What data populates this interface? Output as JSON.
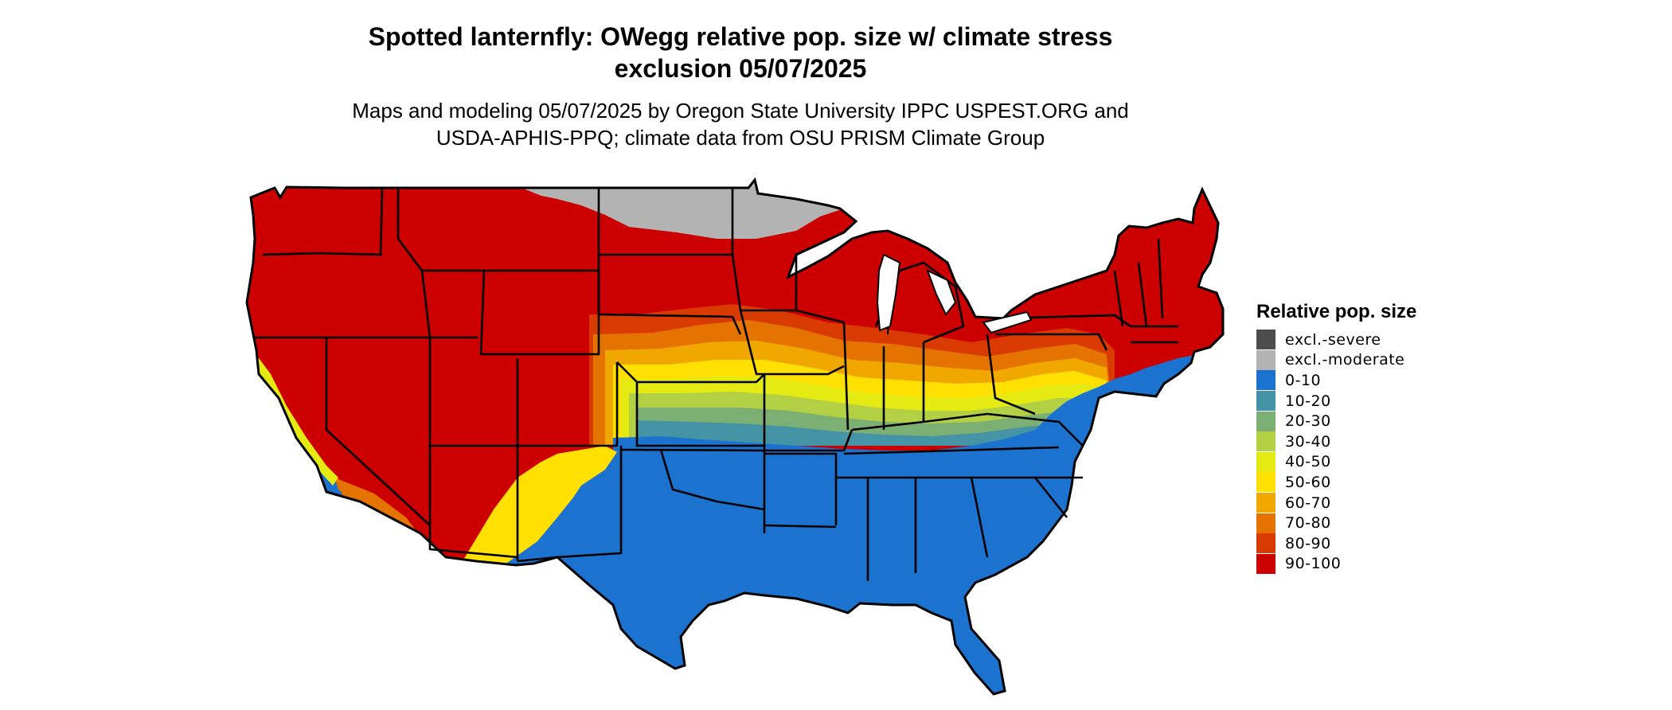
{
  "header": {
    "title_line1": "Spotted lanternfly: OWegg relative pop. size w/ climate stress",
    "title_line2": "exclusion 05/07/2025",
    "subtitle_line1": "Maps and modeling 05/07/2025 by Oregon State University IPPC USPEST.ORG and",
    "subtitle_line2": "USDA-APHIS-PPQ; climate data from OSU PRISM Climate Group"
  },
  "legend": {
    "title": "Relative pop. size",
    "items": [
      {
        "label": "excl.-severe",
        "color": "#4d4d4d"
      },
      {
        "label": "excl.-moderate",
        "color": "#b3b3b3"
      },
      {
        "label": "0-10",
        "color": "#1b73cf"
      },
      {
        "label": "10-20",
        "color": "#4494a6"
      },
      {
        "label": "20-30",
        "color": "#7caf73"
      },
      {
        "label": "30-40",
        "color": "#b3d044"
      },
      {
        "label": "40-50",
        "color": "#e4ea12"
      },
      {
        "label": "50-60",
        "color": "#ffe000"
      },
      {
        "label": "60-70",
        "color": "#f0a800"
      },
      {
        "label": "70-80",
        "color": "#e57300"
      },
      {
        "label": "80-90",
        "color": "#d93a00"
      },
      {
        "label": "90-100",
        "color": "#cc0000"
      }
    ]
  },
  "map": {
    "region": "Conterminous United States",
    "colors": {
      "high": "#cc0000",
      "low": "#1b73cf",
      "excluded_moderate": "#b3b3b3",
      "border": "#000000"
    }
  }
}
